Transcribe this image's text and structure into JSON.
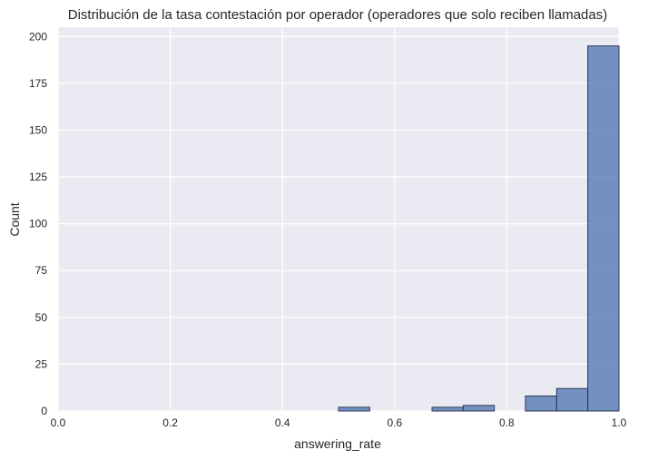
{
  "chart_data": {
    "type": "bar",
    "title": "Distribución de la tasa contestación por operador (operadores que solo reciben llamadas)",
    "xlabel": "answering_rate",
    "ylabel": "Count",
    "xlim": [
      0.0,
      1.0
    ],
    "ylim": [
      0,
      205
    ],
    "xticks": [
      0.0,
      0.2,
      0.4,
      0.6,
      0.8,
      1.0
    ],
    "xtick_labels": [
      "0.0",
      "0.2",
      "0.4",
      "0.6",
      "0.8",
      "1.0"
    ],
    "yticks": [
      0,
      25,
      50,
      75,
      100,
      125,
      150,
      175,
      200
    ],
    "ytick_labels": [
      "0",
      "25",
      "50",
      "75",
      "100",
      "125",
      "150",
      "175",
      "200"
    ],
    "bins": [
      {
        "x0": 0.5,
        "x1": 0.5556,
        "count": 2
      },
      {
        "x0": 0.5556,
        "x1": 0.6111,
        "count": 0
      },
      {
        "x0": 0.6111,
        "x1": 0.6667,
        "count": 0
      },
      {
        "x0": 0.6667,
        "x1": 0.7222,
        "count": 2
      },
      {
        "x0": 0.7222,
        "x1": 0.7778,
        "count": 3
      },
      {
        "x0": 0.7778,
        "x1": 0.8333,
        "count": 0
      },
      {
        "x0": 0.8333,
        "x1": 0.8889,
        "count": 8
      },
      {
        "x0": 0.8889,
        "x1": 0.9444,
        "count": 12
      },
      {
        "x0": 0.9444,
        "x1": 1.0,
        "count": 195
      }
    ],
    "grid": true,
    "colors": {
      "background": "#eaeaf2",
      "grid": "#ffffff",
      "bar_fill": "#4c72b0",
      "bar_edge": "#2b3a55"
    }
  }
}
